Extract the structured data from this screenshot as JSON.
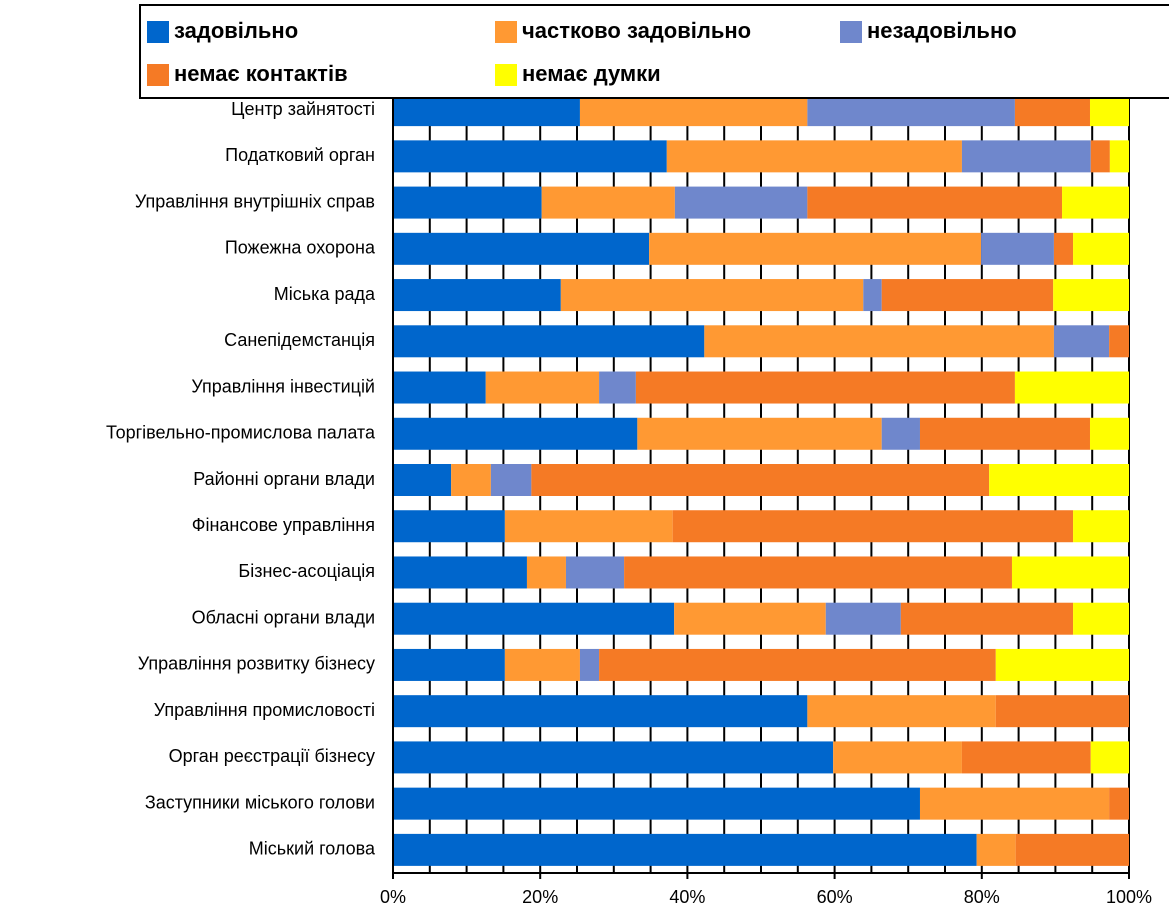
{
  "chart_data": {
    "type": "stacked_bar_horizontal",
    "categories": [
      "Центр зайнятості",
      "Податковий орган",
      "Управління внутрішніх справ",
      "Пожежна охорона",
      "Міська рада",
      "Санепідемстанція",
      "Управління інвестицій",
      "Торгівельно-промислова палата",
      "Районні органи влади",
      "Фінансове управління",
      "Бізнес-асоціація",
      "Обласні органи влади",
      "Управління розвитку бізнесу",
      "Управління промисловості",
      "Орган реєстрації бізнесу",
      "Заступники міського голови",
      "Міський голова"
    ],
    "series": [
      {
        "name": "задовільно",
        "color": "#0066cc",
        "values": [
          25.4,
          37.2,
          20.2,
          34.8,
          22.8,
          42.3,
          12.6,
          33.2,
          7.9,
          15.2,
          18.2,
          38.2,
          15.2,
          56.3,
          59.8,
          71.6,
          79.3
        ]
      },
      {
        "name": "частково задовільно",
        "color": "#ff9933",
        "values": [
          30.9,
          40.1,
          18.1,
          45.1,
          41.1,
          47.5,
          15.4,
          33.2,
          5.4,
          22.8,
          5.3,
          20.6,
          10.2,
          25.6,
          17.5,
          25.7,
          5.3
        ]
      },
      {
        "name": "незадовільно",
        "color": "#6f87cc",
        "values": [
          28.2,
          17.5,
          18.0,
          9.9,
          2.5,
          7.5,
          5.0,
          5.2,
          5.5,
          0,
          7.9,
          10.2,
          2.6,
          0,
          0,
          0,
          0
        ]
      },
      {
        "name": "немає контактів",
        "color": "#f57a25",
        "values": [
          10.2,
          2.6,
          34.6,
          2.6,
          23.3,
          2.7,
          51.5,
          23.1,
          62.2,
          54.4,
          52.7,
          23.4,
          53.9,
          18.1,
          17.5,
          2.7,
          15.4
        ]
      },
      {
        "name": "немає думки",
        "color": "#ffff00",
        "values": [
          5.3,
          2.6,
          9.1,
          7.6,
          10.3,
          0,
          15.5,
          5.3,
          19.0,
          7.6,
          15.9,
          7.6,
          18.1,
          0,
          5.2,
          0,
          0
        ]
      }
    ],
    "xlim": [
      0,
      100
    ],
    "xticks": [
      {
        "value": 0,
        "label": "0%"
      },
      {
        "value": 20,
        "label": "20%"
      },
      {
        "value": 40,
        "label": "40%"
      },
      {
        "value": 60,
        "label": "60%"
      },
      {
        "value": 80,
        "label": "80%"
      },
      {
        "value": 100,
        "label": "100%"
      }
    ],
    "minor_xticks": [
      5,
      10,
      15,
      25,
      30,
      35,
      45,
      50,
      55,
      65,
      70,
      75,
      85,
      90,
      95
    ],
    "legend": "top"
  }
}
